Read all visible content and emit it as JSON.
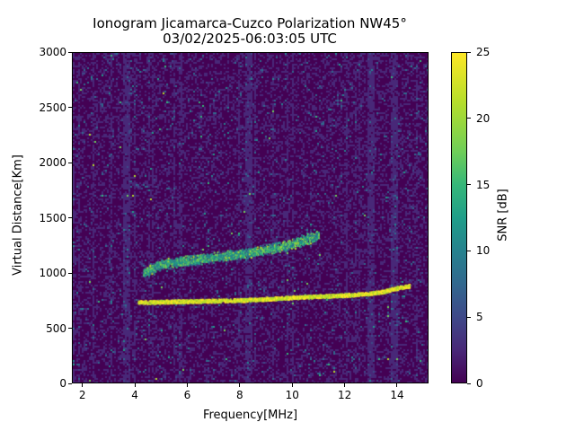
{
  "title": {
    "line1": "Ionogram Jicamarca-Cuzco Polarization NW45°",
    "line2": "03/02/2025-06:03:05 UTC"
  },
  "axes": {
    "xlabel": "Frequency[MHz]",
    "ylabel": "Virtual Distance[Km]",
    "xticks": [
      "2",
      "4",
      "6",
      "8",
      "10",
      "12",
      "14"
    ],
    "yticks": [
      "0",
      "500",
      "1000",
      "1500",
      "2000",
      "2500",
      "3000"
    ]
  },
  "colorbar": {
    "label": "SNR [dB]",
    "ticks": [
      "0",
      "5",
      "10",
      "15",
      "20",
      "25"
    ],
    "colormap": "viridis",
    "low_color": "#440154",
    "high_color": "#fde725"
  },
  "chart_data": {
    "type": "heatmap",
    "title": "Ionogram Jicamarca-Cuzco Polarization NW45° 03/02/2025-06:03:05 UTC",
    "xlabel": "Frequency[MHz]",
    "ylabel": "Virtual Distance[Km]",
    "xlim": [
      1.6,
      15.2
    ],
    "ylim": [
      0,
      3000
    ],
    "zlabel": "SNR [dB]",
    "zlim": [
      0,
      25
    ],
    "colormap": "viridis",
    "grid": false,
    "traces": [
      {
        "name": "main echo trace (strong, ~25 dB)",
        "x": [
          4.1,
          5.0,
          6.0,
          7.0,
          8.0,
          9.0,
          10.0,
          11.0,
          12.0,
          13.0,
          13.5,
          14.0,
          14.5
        ],
        "y": [
          730,
          735,
          740,
          745,
          750,
          760,
          775,
          785,
          795,
          810,
          830,
          860,
          880
        ]
      },
      {
        "name": "upper echo trace (weaker, ~10-25 dB)",
        "x": [
          4.3,
          5.0,
          6.0,
          7.0,
          8.0,
          9.0,
          10.0,
          11.0
        ],
        "y": [
          1000,
          1080,
          1110,
          1140,
          1170,
          1210,
          1260,
          1340
        ]
      }
    ],
    "interference_bands_MHz": [
      3.6,
      8.3,
      13.0,
      13.9
    ]
  }
}
